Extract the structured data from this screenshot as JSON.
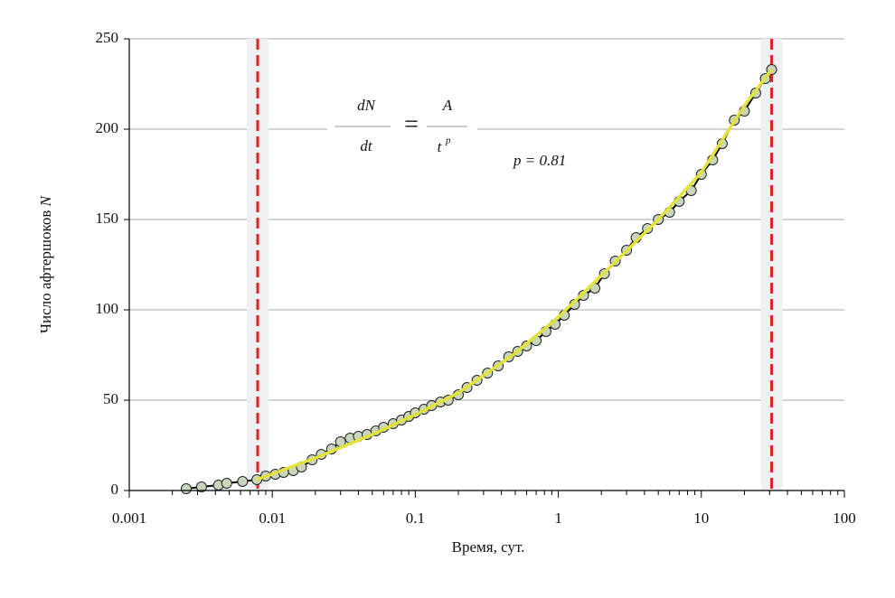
{
  "chart_data": {
    "type": "scatter",
    "xlabel": "Время, сут.",
    "ylabel": "Число афтершоков",
    "ylabel_var": "N",
    "xscale": "log",
    "xlim": [
      0.001,
      100
    ],
    "xticks": [
      0.001,
      0.01,
      0.1,
      1,
      10,
      100
    ],
    "xticks_minor": [
      0.002,
      0.003,
      0.004,
      0.005,
      0.006,
      0.007,
      0.008,
      0.009,
      0.02,
      0.03,
      0.04,
      0.05,
      0.06,
      0.07,
      0.08,
      0.09,
      0.2,
      0.3,
      0.4,
      0.5,
      0.6,
      0.7,
      0.8,
      0.9,
      2,
      3,
      4,
      5,
      6,
      7,
      8,
      9,
      20,
      30,
      40,
      50,
      60,
      70,
      80,
      90
    ],
    "ylim": [
      0,
      250
    ],
    "yticks": [
      0,
      50,
      100,
      150,
      200,
      250
    ],
    "grid": true,
    "series": [
      {
        "color": "#c8d6bc",
        "edge_color": "#222222",
        "connect_color": "#000000",
        "x": [
          0.0025,
          0.0032,
          0.0042,
          0.0048,
          0.0062,
          0.0078,
          0.009,
          0.0105,
          0.012,
          0.014,
          0.016,
          0.019,
          0.022,
          0.026,
          0.03,
          0.035,
          0.04,
          0.046,
          0.053,
          0.06,
          0.07,
          0.08,
          0.09,
          0.1,
          0.115,
          0.13,
          0.15,
          0.17,
          0.2,
          0.23,
          0.27,
          0.32,
          0.38,
          0.45,
          0.52,
          0.6,
          0.7,
          0.82,
          0.95,
          1.1,
          1.3,
          1.5,
          1.8,
          2.1,
          2.5,
          3,
          3.5,
          4.2,
          5,
          6,
          7,
          8.5,
          10,
          12,
          14,
          17,
          20,
          24,
          28,
          31
        ],
        "y": [
          1,
          2,
          3,
          4,
          5,
          6,
          8,
          9,
          10,
          11,
          13,
          17,
          20,
          23,
          27,
          29,
          30,
          31,
          33,
          35,
          37,
          39,
          41,
          43,
          45,
          47,
          49,
          50,
          53,
          57,
          61,
          65,
          69,
          74,
          77,
          80,
          83,
          88,
          92,
          97,
          103,
          108,
          112,
          120,
          127,
          133,
          140,
          145,
          150,
          154,
          160,
          166,
          175,
          183,
          192,
          205,
          210,
          220,
          228,
          233
        ]
      },
      {
        "type": "line",
        "color": "#e2e23a",
        "x": [
          0.0078,
          0.02,
          0.05,
          0.1,
          0.2,
          0.5,
          1,
          2,
          5,
          10,
          20,
          31
        ],
        "y": [
          6,
          18,
          31,
          42,
          54,
          76,
          96,
          119,
          150,
          176,
          213,
          233
        ]
      }
    ],
    "vlines": {
      "values": [
        0.0079,
        31
      ],
      "color": "#e02424"
    },
    "equation": {
      "lhs_num": "dN",
      "lhs_den": "dt",
      "equals": "=",
      "rhs_num": "A",
      "rhs_den": "t",
      "exponent": "p"
    },
    "annotation": "p = 0.81"
  }
}
